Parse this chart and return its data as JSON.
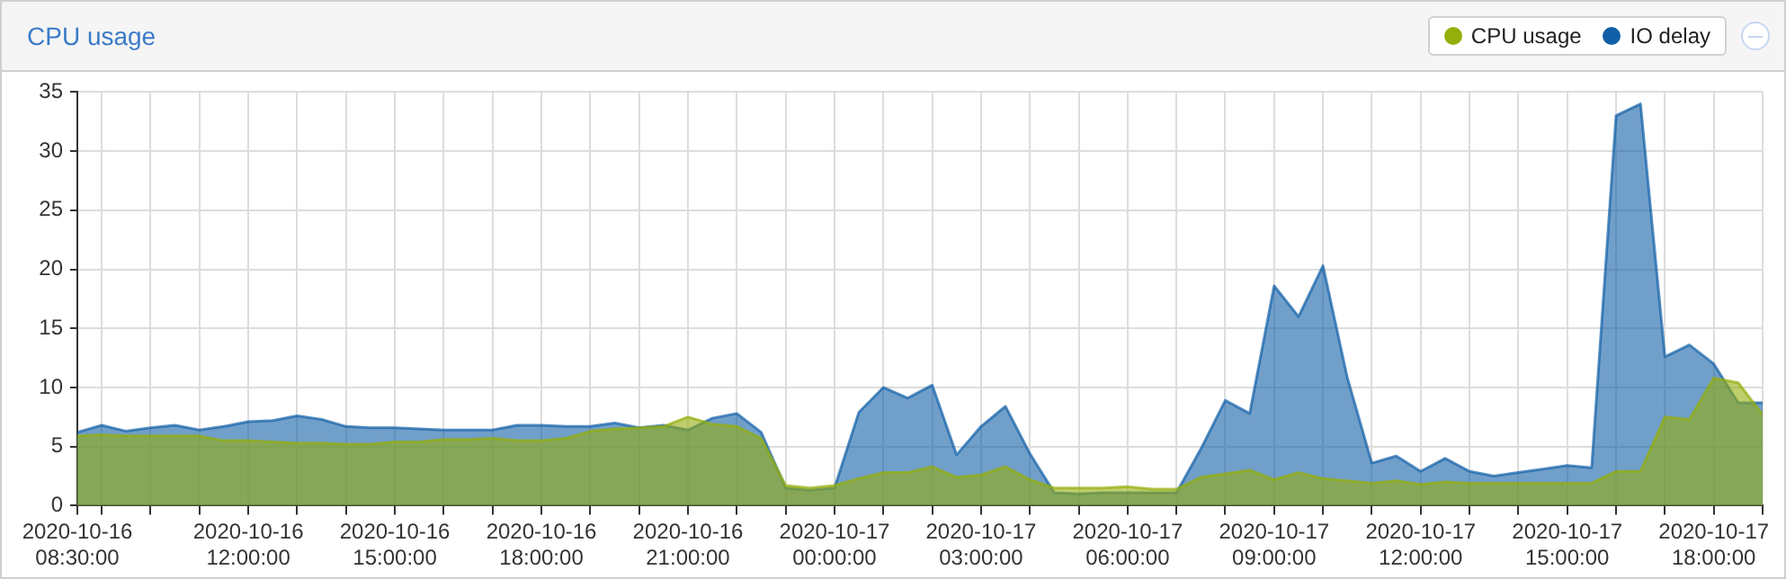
{
  "chart_data": {
    "type": "area",
    "title": "CPU usage",
    "legend": "top right",
    "grid": true,
    "marker": "none",
    "x": [
      "2020-10-16T08:30",
      "2020-10-16T09:00",
      "2020-10-16T09:30",
      "2020-10-16T10:00",
      "2020-10-16T10:30",
      "2020-10-16T11:00",
      "2020-10-16T11:30",
      "2020-10-16T12:00",
      "2020-10-16T12:30",
      "2020-10-16T13:00",
      "2020-10-16T13:30",
      "2020-10-16T14:00",
      "2020-10-16T14:30",
      "2020-10-16T15:00",
      "2020-10-16T15:30",
      "2020-10-16T16:00",
      "2020-10-16T16:30",
      "2020-10-16T17:00",
      "2020-10-16T17:30",
      "2020-10-16T18:00",
      "2020-10-16T18:30",
      "2020-10-16T19:00",
      "2020-10-16T19:30",
      "2020-10-16T20:00",
      "2020-10-16T20:30",
      "2020-10-16T21:00",
      "2020-10-16T21:30",
      "2020-10-16T22:00",
      "2020-10-16T22:30",
      "2020-10-16T23:00",
      "2020-10-16T23:30",
      "2020-10-17T00:00",
      "2020-10-17T00:30",
      "2020-10-17T01:00",
      "2020-10-17T01:30",
      "2020-10-17T02:00",
      "2020-10-17T02:30",
      "2020-10-17T03:00",
      "2020-10-17T03:30",
      "2020-10-17T04:00",
      "2020-10-17T04:30",
      "2020-10-17T05:00",
      "2020-10-17T05:30",
      "2020-10-17T06:00",
      "2020-10-17T06:30",
      "2020-10-17T07:00",
      "2020-10-17T07:30",
      "2020-10-17T08:00",
      "2020-10-17T08:30",
      "2020-10-17T09:00",
      "2020-10-17T09:30",
      "2020-10-17T10:00",
      "2020-10-17T10:30",
      "2020-10-17T11:00",
      "2020-10-17T11:30",
      "2020-10-17T12:00",
      "2020-10-17T12:30",
      "2020-10-17T13:00",
      "2020-10-17T13:30",
      "2020-10-17T14:00",
      "2020-10-17T14:30",
      "2020-10-17T15:00",
      "2020-10-17T15:30",
      "2020-10-17T16:00",
      "2020-10-17T16:30",
      "2020-10-17T17:00",
      "2020-10-17T17:30",
      "2020-10-17T18:00",
      "2020-10-17T18:30",
      "2020-10-17T19:00"
    ],
    "series": [
      {
        "name": "CPU usage",
        "color": "#94ae0a",
        "values": [
          5.9,
          6.0,
          5.9,
          5.9,
          5.9,
          5.9,
          5.5,
          5.5,
          5.4,
          5.3,
          5.3,
          5.2,
          5.2,
          5.4,
          5.4,
          5.6,
          5.6,
          5.7,
          5.5,
          5.5,
          5.7,
          6.3,
          6.5,
          6.6,
          6.7,
          7.5,
          6.9,
          6.7,
          5.7,
          1.7,
          1.5,
          1.7,
          2.3,
          2.8,
          2.8,
          3.3,
          2.4,
          2.6,
          3.3,
          2.2,
          1.5,
          1.5,
          1.5,
          1.6,
          1.4,
          1.4,
          2.4,
          2.7,
          3.0,
          2.2,
          2.8,
          2.3,
          2.1,
          1.9,
          2.1,
          1.8,
          2.0,
          1.9,
          1.9,
          1.9,
          1.9,
          1.9,
          1.9,
          2.9,
          2.9,
          7.5,
          7.3,
          10.8,
          10.4,
          7.7
        ]
      },
      {
        "name": "IO delay",
        "color": "#115fa6",
        "values": [
          6.2,
          6.8,
          6.3,
          6.6,
          6.8,
          6.4,
          6.7,
          7.1,
          7.2,
          7.6,
          7.3,
          6.7,
          6.6,
          6.6,
          6.5,
          6.4,
          6.4,
          6.4,
          6.8,
          6.8,
          6.7,
          6.7,
          7.0,
          6.6,
          6.8,
          6.4,
          7.4,
          7.8,
          6.2,
          1.5,
          1.3,
          1.5,
          7.9,
          10.0,
          9.1,
          10.2,
          4.3,
          6.7,
          8.4,
          4.4,
          1.1,
          1.0,
          1.1,
          1.1,
          1.1,
          1.1,
          4.8,
          8.9,
          7.8,
          18.6,
          16.0,
          20.3,
          10.8,
          3.6,
          4.2,
          2.9,
          4.0,
          2.9,
          2.5,
          2.8,
          3.1,
          3.4,
          3.2,
          33.0,
          34.0,
          12.6,
          13.6,
          12.0,
          8.7,
          8.7
        ]
      }
    ],
    "xlim": [
      "2020-10-16T08:30",
      "2020-10-17T19:00"
    ],
    "xticks": [
      {
        "value": "2020-10-16T08:30",
        "label": "2020-10-16 08:30:00"
      },
      {
        "value": "2020-10-16T09:00",
        "label": null
      },
      {
        "value": "2020-10-16T10:00",
        "label": null
      },
      {
        "value": "2020-10-16T11:00",
        "label": null
      },
      {
        "value": "2020-10-16T12:00",
        "label": "2020-10-16 12:00:00"
      },
      {
        "value": "2020-10-16T13:00",
        "label": null
      },
      {
        "value": "2020-10-16T14:00",
        "label": null
      },
      {
        "value": "2020-10-16T15:00",
        "label": "2020-10-16 15:00:00"
      },
      {
        "value": "2020-10-16T16:00",
        "label": null
      },
      {
        "value": "2020-10-16T17:00",
        "label": null
      },
      {
        "value": "2020-10-16T18:00",
        "label": "2020-10-16 18:00:00"
      },
      {
        "value": "2020-10-16T19:00",
        "label": null
      },
      {
        "value": "2020-10-16T20:00",
        "label": null
      },
      {
        "value": "2020-10-16T21:00",
        "label": "2020-10-16 21:00:00"
      },
      {
        "value": "2020-10-16T22:00",
        "label": null
      },
      {
        "value": "2020-10-16T23:00",
        "label": null
      },
      {
        "value": "2020-10-17T00:00",
        "label": "2020-10-17 00:00:00"
      },
      {
        "value": "2020-10-17T01:00",
        "label": null
      },
      {
        "value": "2020-10-17T02:00",
        "label": null
      },
      {
        "value": "2020-10-17T03:00",
        "label": "2020-10-17 03:00:00"
      },
      {
        "value": "2020-10-17T04:00",
        "label": null
      },
      {
        "value": "2020-10-17T05:00",
        "label": null
      },
      {
        "value": "2020-10-17T06:00",
        "label": "2020-10-17 06:00:00"
      },
      {
        "value": "2020-10-17T07:00",
        "label": null
      },
      {
        "value": "2020-10-17T08:00",
        "label": null
      },
      {
        "value": "2020-10-17T09:00",
        "label": "2020-10-17 09:00:00"
      },
      {
        "value": "2020-10-17T10:00",
        "label": null
      },
      {
        "value": "2020-10-17T11:00",
        "label": null
      },
      {
        "value": "2020-10-17T12:00",
        "label": "2020-10-17 12:00:00"
      },
      {
        "value": "2020-10-17T13:00",
        "label": null
      },
      {
        "value": "2020-10-17T14:00",
        "label": null
      },
      {
        "value": "2020-10-17T15:00",
        "label": "2020-10-17 15:00:00"
      },
      {
        "value": "2020-10-17T16:00",
        "label": null
      },
      {
        "value": "2020-10-17T17:00",
        "label": null
      },
      {
        "value": "2020-10-17T18:00",
        "label": "2020-10-17 18:00:00"
      },
      {
        "value": "2020-10-17T19:00",
        "label": null
      }
    ],
    "ylim": [
      0,
      35
    ],
    "yticks": [
      0,
      5,
      10,
      15,
      20,
      25,
      30,
      35
    ]
  }
}
